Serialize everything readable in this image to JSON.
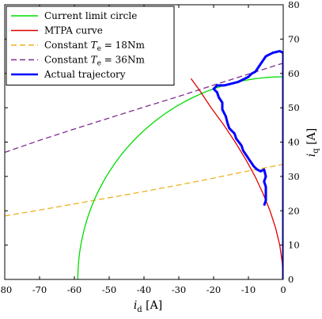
{
  "chart_data": {
    "type": "line",
    "xlabel": "i_d [A]",
    "ylabel": "i_q [A]",
    "xlim": [
      -80,
      0
    ],
    "ylim": [
      0,
      80
    ],
    "x_ticks": [
      -80,
      -70,
      -60,
      -50,
      -40,
      -30,
      -20,
      -10,
      0
    ],
    "y_ticks": [
      0,
      10,
      20,
      30,
      40,
      50,
      60,
      70,
      80
    ],
    "y_axis_position": "right",
    "grid": false,
    "legend_position": "top-left",
    "series": [
      {
        "name": "Current limit circle",
        "color": "#00dd00",
        "style": "solid",
        "shape": "circle-arc",
        "radius": 59
      },
      {
        "name": "MTPA curve",
        "color": "#e00000",
        "style": "solid",
        "points": [
          [
            0,
            0
          ],
          [
            -0.3,
            5
          ],
          [
            -1.0,
            10
          ],
          [
            -2.2,
            15
          ],
          [
            -3.8,
            20
          ],
          [
            -5.8,
            25
          ],
          [
            -8.1,
            30
          ],
          [
            -10.8,
            35
          ],
          [
            -13.8,
            40
          ],
          [
            -17.1,
            45
          ],
          [
            -20.7,
            50
          ],
          [
            -24.0,
            55
          ],
          [
            -26.5,
            58.5
          ]
        ]
      },
      {
        "name": "Constant $T_e$ = 18Nm",
        "label_prefix": "Constant ",
        "label_symbol": "T",
        "label_subscript": "e",
        "label_suffix": " = 18Nm",
        "color": "#edb120",
        "style": "dashed",
        "points": [
          [
            -80,
            18.5
          ],
          [
            -70,
            20.2
          ],
          [
            -60,
            22.0
          ],
          [
            -50,
            23.8
          ],
          [
            -40,
            25.6
          ],
          [
            -30,
            27.5
          ],
          [
            -20,
            29.5
          ],
          [
            -10,
            31.6
          ],
          [
            0,
            33.5
          ]
        ]
      },
      {
        "name": "Constant $T_e$ = 36Nm",
        "label_prefix": "Constant ",
        "label_symbol": "T",
        "label_subscript": "e",
        "label_suffix": " = 36Nm",
        "color": "#7e2f8e",
        "style": "dashed",
        "points": [
          [
            -80,
            37.0
          ],
          [
            -70,
            40.5
          ],
          [
            -60,
            43.8
          ],
          [
            -50,
            47.0
          ],
          [
            -40,
            50.2
          ],
          [
            -30,
            53.3
          ],
          [
            -20,
            56.6
          ],
          [
            -10,
            59.8
          ],
          [
            0,
            63.0
          ]
        ]
      },
      {
        "name": "Actual trajectory",
        "color": "#0000ff",
        "style": "solid",
        "width": 3,
        "points": [
          [
            0,
            0
          ],
          [
            0,
            66
          ],
          [
            -1,
            66.5
          ],
          [
            -3,
            66
          ],
          [
            -5,
            65
          ],
          [
            -6,
            63.5
          ],
          [
            -7,
            62
          ],
          [
            -8,
            60.5
          ],
          [
            -9,
            60
          ],
          [
            -10,
            59
          ],
          [
            -11,
            58.5
          ],
          [
            -13,
            57.5
          ],
          [
            -15,
            57
          ],
          [
            -17,
            56.5
          ],
          [
            -19,
            56.5
          ],
          [
            -20,
            55.5
          ],
          [
            -19,
            54.5
          ],
          [
            -18.5,
            53
          ],
          [
            -17.5,
            51.5
          ],
          [
            -17.5,
            49.5
          ],
          [
            -16.5,
            47.5
          ],
          [
            -16,
            45.5
          ],
          [
            -15.5,
            44
          ],
          [
            -14,
            42.5
          ],
          [
            -13.5,
            41
          ],
          [
            -12,
            39
          ],
          [
            -11.5,
            37.5
          ],
          [
            -10.5,
            36
          ],
          [
            -9.5,
            34.5
          ],
          [
            -8.5,
            33
          ],
          [
            -7.5,
            32
          ],
          [
            -6.5,
            31.5
          ],
          [
            -5.5,
            32
          ],
          [
            -5,
            30
          ],
          [
            -5.5,
            28.5
          ],
          [
            -5,
            27
          ],
          [
            -5,
            26
          ],
          [
            -5,
            25
          ],
          [
            -5,
            24
          ],
          [
            -5,
            23
          ],
          [
            -5.5,
            21.5
          ]
        ]
      }
    ]
  }
}
